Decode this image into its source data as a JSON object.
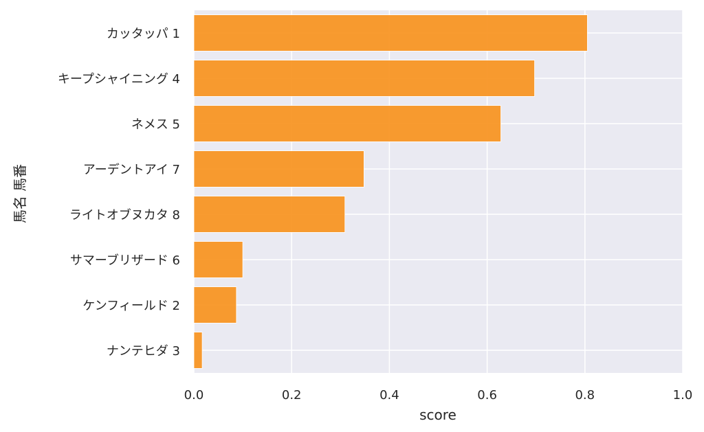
{
  "chart_data": {
    "type": "bar",
    "orientation": "horizontal",
    "categories": [
      "カッタッパ 1",
      "キープシャイニング 4",
      "ネメス 5",
      "アーデントアイ 7",
      "ライトオブヌカタ 8",
      "サマーブリザード 6",
      "ケンフィールド 2",
      "ナンテヒダ 3"
    ],
    "values": [
      0.805,
      0.697,
      0.628,
      0.348,
      0.309,
      0.1,
      0.087,
      0.017
    ],
    "xlabel": "score",
    "ylabel": "馬名 馬番",
    "xlim": [
      0,
      1.0
    ],
    "xticks": [
      "0.0",
      "0.2",
      "0.4",
      "0.6",
      "0.8",
      "1.0"
    ],
    "xtick_values": [
      0,
      0.2,
      0.4,
      0.6,
      0.8,
      1.0
    ],
    "grid": true,
    "colors": {
      "bar": "#f7931e",
      "plot_background": "#eaeaf2",
      "grid": "#ffffff",
      "text": "#262626"
    }
  }
}
